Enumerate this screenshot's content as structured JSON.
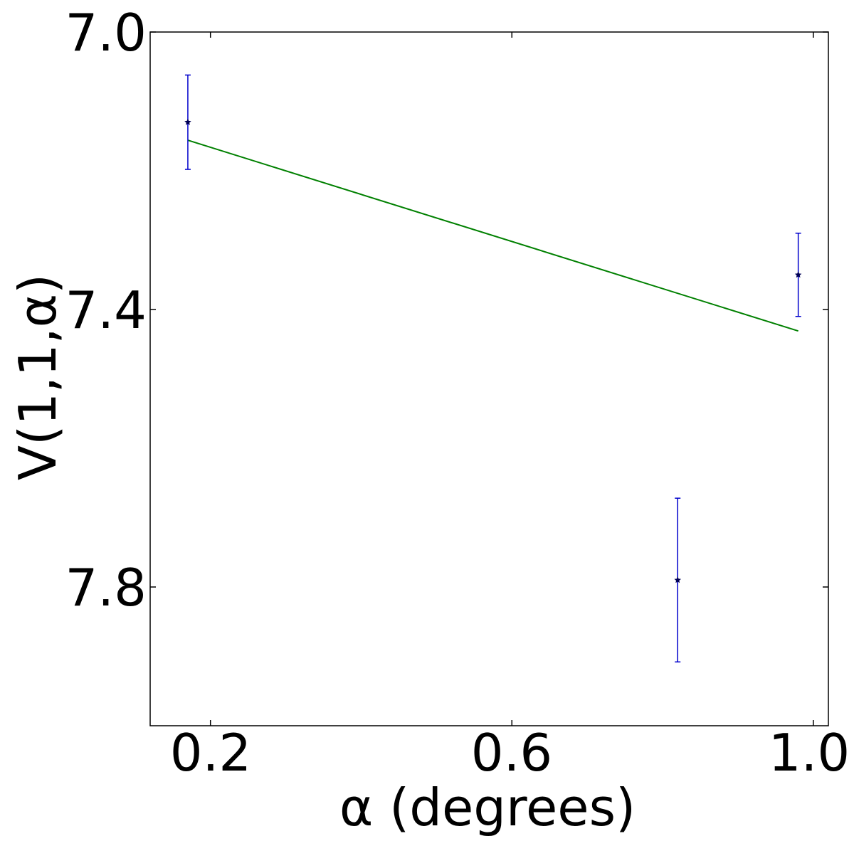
{
  "chart_data": {
    "type": "scatter",
    "xlabel": "α (degrees)",
    "ylabel": "V(1,1,α)",
    "xlim": [
      0.12,
      1.02
    ],
    "ylim": [
      8.0,
      7.0
    ],
    "y_inverted": true,
    "grid": false,
    "x_ticks": [
      0.2,
      0.6,
      1.0
    ],
    "x_tick_labels": [
      "0.2",
      "0.6",
      "1.0"
    ],
    "y_ticks": [
      7.0,
      7.4,
      7.8
    ],
    "y_tick_labels": [
      "7.0",
      "7.4",
      "7.8"
    ],
    "points": [
      {
        "x": 0.17,
        "y": 7.13,
        "yerr": 0.068
      },
      {
        "x": 0.82,
        "y": 7.79,
        "yerr": 0.118
      },
      {
        "x": 0.98,
        "y": 7.35,
        "yerr": 0.06
      }
    ],
    "fit_line": {
      "x": [
        0.17,
        0.98
      ],
      "y": [
        7.156,
        7.431
      ]
    },
    "colors": {
      "errorbar": "#0000cc",
      "marker": "#000055",
      "fit": "#008000",
      "axes": "#000000"
    }
  }
}
